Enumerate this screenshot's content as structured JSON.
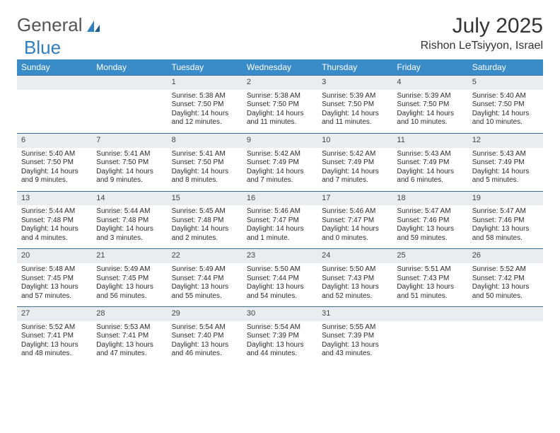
{
  "brand": {
    "part1": "General",
    "part2": "Blue",
    "accent_color": "#2f7fc2"
  },
  "title": "July 2025",
  "location": "Rishon LeTsiyyon, Israel",
  "header_bg": "#3a8cc9",
  "daynum_bg": "#e9edef",
  "border_color": "#3a6fa0",
  "day_headers": [
    "Sunday",
    "Monday",
    "Tuesday",
    "Wednesday",
    "Thursday",
    "Friday",
    "Saturday"
  ],
  "weeks": [
    [
      null,
      null,
      {
        "n": "1",
        "sr": "Sunrise: 5:38 AM",
        "ss": "Sunset: 7:50 PM",
        "d1": "Daylight: 14 hours",
        "d2": "and 12 minutes."
      },
      {
        "n": "2",
        "sr": "Sunrise: 5:38 AM",
        "ss": "Sunset: 7:50 PM",
        "d1": "Daylight: 14 hours",
        "d2": "and 11 minutes."
      },
      {
        "n": "3",
        "sr": "Sunrise: 5:39 AM",
        "ss": "Sunset: 7:50 PM",
        "d1": "Daylight: 14 hours",
        "d2": "and 11 minutes."
      },
      {
        "n": "4",
        "sr": "Sunrise: 5:39 AM",
        "ss": "Sunset: 7:50 PM",
        "d1": "Daylight: 14 hours",
        "d2": "and 10 minutes."
      },
      {
        "n": "5",
        "sr": "Sunrise: 5:40 AM",
        "ss": "Sunset: 7:50 PM",
        "d1": "Daylight: 14 hours",
        "d2": "and 10 minutes."
      }
    ],
    [
      {
        "n": "6",
        "sr": "Sunrise: 5:40 AM",
        "ss": "Sunset: 7:50 PM",
        "d1": "Daylight: 14 hours",
        "d2": "and 9 minutes."
      },
      {
        "n": "7",
        "sr": "Sunrise: 5:41 AM",
        "ss": "Sunset: 7:50 PM",
        "d1": "Daylight: 14 hours",
        "d2": "and 9 minutes."
      },
      {
        "n": "8",
        "sr": "Sunrise: 5:41 AM",
        "ss": "Sunset: 7:50 PM",
        "d1": "Daylight: 14 hours",
        "d2": "and 8 minutes."
      },
      {
        "n": "9",
        "sr": "Sunrise: 5:42 AM",
        "ss": "Sunset: 7:49 PM",
        "d1": "Daylight: 14 hours",
        "d2": "and 7 minutes."
      },
      {
        "n": "10",
        "sr": "Sunrise: 5:42 AM",
        "ss": "Sunset: 7:49 PM",
        "d1": "Daylight: 14 hours",
        "d2": "and 7 minutes."
      },
      {
        "n": "11",
        "sr": "Sunrise: 5:43 AM",
        "ss": "Sunset: 7:49 PM",
        "d1": "Daylight: 14 hours",
        "d2": "and 6 minutes."
      },
      {
        "n": "12",
        "sr": "Sunrise: 5:43 AM",
        "ss": "Sunset: 7:49 PM",
        "d1": "Daylight: 14 hours",
        "d2": "and 5 minutes."
      }
    ],
    [
      {
        "n": "13",
        "sr": "Sunrise: 5:44 AM",
        "ss": "Sunset: 7:48 PM",
        "d1": "Daylight: 14 hours",
        "d2": "and 4 minutes."
      },
      {
        "n": "14",
        "sr": "Sunrise: 5:44 AM",
        "ss": "Sunset: 7:48 PM",
        "d1": "Daylight: 14 hours",
        "d2": "and 3 minutes."
      },
      {
        "n": "15",
        "sr": "Sunrise: 5:45 AM",
        "ss": "Sunset: 7:48 PM",
        "d1": "Daylight: 14 hours",
        "d2": "and 2 minutes."
      },
      {
        "n": "16",
        "sr": "Sunrise: 5:46 AM",
        "ss": "Sunset: 7:47 PM",
        "d1": "Daylight: 14 hours",
        "d2": "and 1 minute."
      },
      {
        "n": "17",
        "sr": "Sunrise: 5:46 AM",
        "ss": "Sunset: 7:47 PM",
        "d1": "Daylight: 14 hours",
        "d2": "and 0 minutes."
      },
      {
        "n": "18",
        "sr": "Sunrise: 5:47 AM",
        "ss": "Sunset: 7:46 PM",
        "d1": "Daylight: 13 hours",
        "d2": "and 59 minutes."
      },
      {
        "n": "19",
        "sr": "Sunrise: 5:47 AM",
        "ss": "Sunset: 7:46 PM",
        "d1": "Daylight: 13 hours",
        "d2": "and 58 minutes."
      }
    ],
    [
      {
        "n": "20",
        "sr": "Sunrise: 5:48 AM",
        "ss": "Sunset: 7:45 PM",
        "d1": "Daylight: 13 hours",
        "d2": "and 57 minutes."
      },
      {
        "n": "21",
        "sr": "Sunrise: 5:49 AM",
        "ss": "Sunset: 7:45 PM",
        "d1": "Daylight: 13 hours",
        "d2": "and 56 minutes."
      },
      {
        "n": "22",
        "sr": "Sunrise: 5:49 AM",
        "ss": "Sunset: 7:44 PM",
        "d1": "Daylight: 13 hours",
        "d2": "and 55 minutes."
      },
      {
        "n": "23",
        "sr": "Sunrise: 5:50 AM",
        "ss": "Sunset: 7:44 PM",
        "d1": "Daylight: 13 hours",
        "d2": "and 54 minutes."
      },
      {
        "n": "24",
        "sr": "Sunrise: 5:50 AM",
        "ss": "Sunset: 7:43 PM",
        "d1": "Daylight: 13 hours",
        "d2": "and 52 minutes."
      },
      {
        "n": "25",
        "sr": "Sunrise: 5:51 AM",
        "ss": "Sunset: 7:43 PM",
        "d1": "Daylight: 13 hours",
        "d2": "and 51 minutes."
      },
      {
        "n": "26",
        "sr": "Sunrise: 5:52 AM",
        "ss": "Sunset: 7:42 PM",
        "d1": "Daylight: 13 hours",
        "d2": "and 50 minutes."
      }
    ],
    [
      {
        "n": "27",
        "sr": "Sunrise: 5:52 AM",
        "ss": "Sunset: 7:41 PM",
        "d1": "Daylight: 13 hours",
        "d2": "and 48 minutes."
      },
      {
        "n": "28",
        "sr": "Sunrise: 5:53 AM",
        "ss": "Sunset: 7:41 PM",
        "d1": "Daylight: 13 hours",
        "d2": "and 47 minutes."
      },
      {
        "n": "29",
        "sr": "Sunrise: 5:54 AM",
        "ss": "Sunset: 7:40 PM",
        "d1": "Daylight: 13 hours",
        "d2": "and 46 minutes."
      },
      {
        "n": "30",
        "sr": "Sunrise: 5:54 AM",
        "ss": "Sunset: 7:39 PM",
        "d1": "Daylight: 13 hours",
        "d2": "and 44 minutes."
      },
      {
        "n": "31",
        "sr": "Sunrise: 5:55 AM",
        "ss": "Sunset: 7:39 PM",
        "d1": "Daylight: 13 hours",
        "d2": "and 43 minutes."
      },
      null,
      null
    ]
  ]
}
